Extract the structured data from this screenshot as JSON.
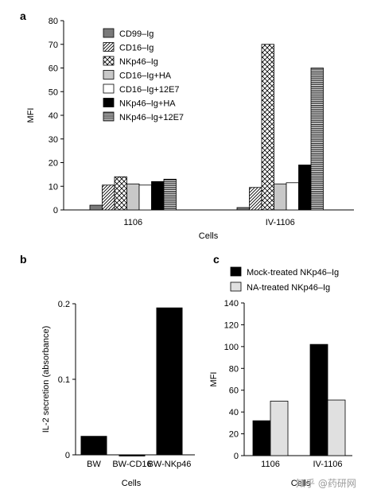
{
  "panels": {
    "a": {
      "label": "a"
    },
    "b": {
      "label": "b"
    },
    "c": {
      "label": "c"
    }
  },
  "watermark": "知乎 @药研网",
  "chart_data": [
    {
      "id": "a",
      "type": "bar",
      "xlabel": "Cells",
      "ylabel": "MFI",
      "ylim": [
        0,
        80
      ],
      "yticks": [
        0,
        10,
        20,
        30,
        40,
        50,
        60,
        70,
        80
      ],
      "categories": [
        "1106",
        "IV-1106"
      ],
      "legend_position": "top-left",
      "series": [
        {
          "name": "CD99–Ig",
          "pattern": "gray",
          "values": [
            2,
            1
          ]
        },
        {
          "name": "CD16–Ig",
          "pattern": "diagonal",
          "values": [
            10.5,
            9.5
          ]
        },
        {
          "name": "NKp46–Ig",
          "pattern": "crosshatch",
          "values": [
            14,
            70
          ]
        },
        {
          "name": "CD16–Ig+HA",
          "pattern": "lightgray",
          "values": [
            11,
            11
          ]
        },
        {
          "name": "CD16–Ig+12E7",
          "pattern": "white",
          "values": [
            10.5,
            11.5
          ]
        },
        {
          "name": "NKp46–Ig+HA",
          "pattern": "black",
          "values": [
            12,
            19
          ]
        },
        {
          "name": "NKp46–Ig+12E7",
          "pattern": "horizontal",
          "values": [
            13,
            60
          ]
        }
      ]
    },
    {
      "id": "b",
      "type": "bar",
      "xlabel": "Cells",
      "ylabel": "IL-2 secretion (absorbance)",
      "ylim": [
        0,
        0.2
      ],
      "yticks": [
        0,
        0.1,
        0.2
      ],
      "categories": [
        "BW",
        "BW-CD16",
        "BW-NKp46"
      ],
      "values": [
        0.025,
        -0.002,
        0.195
      ],
      "colors": {
        "bar": "#000000"
      }
    },
    {
      "id": "c",
      "type": "bar",
      "xlabel": "Cells",
      "ylabel": "MFI",
      "ylim": [
        0,
        140
      ],
      "yticks": [
        0,
        20,
        40,
        60,
        80,
        100,
        120,
        140
      ],
      "categories": [
        "1106",
        "IV-1106"
      ],
      "legend_position": "top",
      "series": [
        {
          "name": "Mock-treated NKp46–Ig",
          "color": "#000000",
          "values": [
            32,
            102
          ]
        },
        {
          "name": "NA-treated NKp46–Ig",
          "color": "#e0e0e0",
          "values": [
            50,
            51
          ]
        }
      ]
    }
  ]
}
